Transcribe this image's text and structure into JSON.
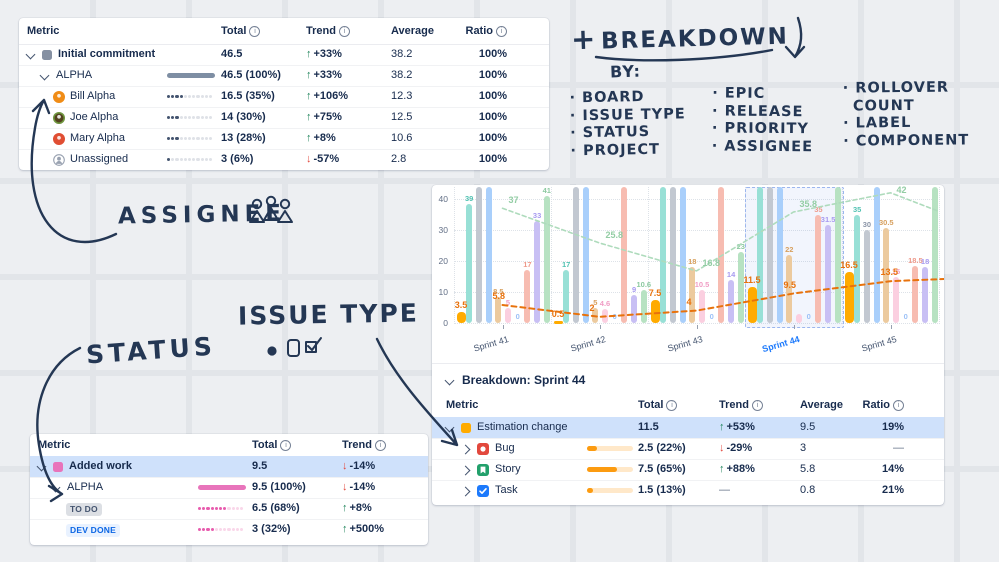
{
  "annotations": {
    "plus": "+",
    "title": "BREAKDOWN",
    "by": "BY:",
    "lists": [
      [
        "BOARD",
        "ISSUE TYPE",
        "STATUS",
        "PROJECT"
      ],
      [
        "EPIC",
        "RELEASE",
        "PRIORITY",
        "ASSIGNEE"
      ],
      [
        "ROLLOVER COUNT",
        "LABEL",
        "COMPONENT"
      ]
    ],
    "assignee": "ASSIGNEE",
    "status": "STATUS",
    "issue_type": "ISSUE TYPE"
  },
  "colors": {
    "accent_blue": "#1d7afc",
    "up_green": "#1f845a",
    "down_red": "#e2483d",
    "highlight_row": "#cfe1fb",
    "orange": "#ffab00",
    "ink": "#243754"
  },
  "commitment_table": {
    "columns": [
      "Metric",
      "Total",
      "Trend",
      "Average",
      "Ratio"
    ],
    "info_columns": [
      "Total",
      "Trend",
      "Ratio"
    ],
    "rows": [
      {
        "label": "Initial commitment",
        "level": 0,
        "expanded": true,
        "icon": "square",
        "icon_color": "#8590a2",
        "bold": true,
        "total": "46.5",
        "trend": "+33%",
        "trend_dir": "up",
        "average": "38.2",
        "ratio": "100%"
      },
      {
        "label": "ALPHA",
        "level": 1,
        "expanded": true,
        "bar": "solid",
        "bar_color": "#7e8ea3",
        "bar_pct": 100,
        "total": "46.5 (100%)",
        "trend": "+33%",
        "trend_dir": "up",
        "average": "38.2",
        "ratio": "100%"
      },
      {
        "label": "Bill Alpha",
        "level": 2,
        "icon": "avatar",
        "icon_color": "#f08c16",
        "bar": "dots",
        "bar_pct": 35,
        "total": "16.5 (35%)",
        "trend": "+106%",
        "trend_dir": "up",
        "average": "12.3",
        "ratio": "100%"
      },
      {
        "label": "Joe Alpha",
        "level": 2,
        "icon": "avatar",
        "icon_color": "#53421f",
        "icon_ring": "#6f9a3e",
        "bar": "dots",
        "bar_pct": 30,
        "total": "14 (30%)",
        "trend": "+75%",
        "trend_dir": "up",
        "average": "12.5",
        "ratio": "100%"
      },
      {
        "label": "Mary Alpha",
        "level": 2,
        "icon": "avatar",
        "icon_color": "#e04e33",
        "bar": "dots",
        "bar_pct": 28,
        "total": "13 (28%)",
        "trend": "+8%",
        "trend_dir": "up",
        "average": "10.6",
        "ratio": "100%"
      },
      {
        "label": "Unassigned",
        "level": 2,
        "icon": "person",
        "bar": "dots",
        "bar_pct": 6,
        "total": "3 (6%)",
        "trend": "-57%",
        "trend_dir": "down",
        "average": "2.8",
        "ratio": "100%"
      }
    ]
  },
  "added_work_table": {
    "columns": [
      "Metric",
      "Total",
      "Trend"
    ],
    "info_columns": [
      "Total",
      "Trend"
    ],
    "rows": [
      {
        "label": "Added work",
        "level": 0,
        "expanded": true,
        "icon": "square",
        "icon_color": "#e874bb",
        "bold": true,
        "highlight": true,
        "total": "9.5",
        "trend": "-14%",
        "trend_dir": "down"
      },
      {
        "label": "ALPHA",
        "level": 1,
        "expanded": true,
        "bar": "solid",
        "bar_color": "#e874bb",
        "bar_pct": 100,
        "total": "9.5 (100%)",
        "trend": "-14%",
        "trend_dir": "down"
      },
      {
        "label": "TO DO",
        "level": 2,
        "badge": "gray",
        "bar": "dots",
        "bar_pct": 68,
        "total": "6.5 (68%)",
        "trend": "+8%",
        "trend_dir": "up"
      },
      {
        "label": "DEV DONE",
        "level": 2,
        "badge": "blue",
        "bar": "dots",
        "bar_pct": 32,
        "total": "3 (32%)",
        "trend": "+500%",
        "trend_dir": "up"
      }
    ]
  },
  "breakdown_table": {
    "section_title": "Breakdown: Sprint 44",
    "columns": [
      "Metric",
      "Total",
      "Trend",
      "Average",
      "Ratio"
    ],
    "info_columns": [
      "Total",
      "Trend",
      "Ratio"
    ],
    "rows": [
      {
        "label": "Estimation change",
        "level": 0,
        "expanded": true,
        "icon": "square",
        "icon_color": "#ffab00",
        "highlight": true,
        "bold": false,
        "total": "11.5",
        "trend": "+53%",
        "trend_dir": "up",
        "average": "9.5",
        "ratio": "19%"
      },
      {
        "label": "Bug",
        "level": 1,
        "expanded": false,
        "icon": "bug",
        "bar": "track",
        "bar_pct": 22,
        "total": "2.5 (22%)",
        "trend": "-29%",
        "trend_dir": "down",
        "average": "3",
        "ratio": "—"
      },
      {
        "label": "Story",
        "level": 1,
        "expanded": false,
        "icon": "story",
        "bar": "track",
        "bar_pct": 65,
        "total": "7.5 (65%)",
        "trend": "+88%",
        "trend_dir": "up",
        "average": "5.8",
        "ratio": "14%"
      },
      {
        "label": "Task",
        "level": 1,
        "expanded": false,
        "icon": "task",
        "bar": "track",
        "bar_pct": 13,
        "total": "1.5 (13%)",
        "trend": "—",
        "trend_dir": "none",
        "average": "0.8",
        "ratio": "21%"
      }
    ]
  },
  "chart_data": {
    "type": "bar",
    "categories": [
      "Sprint 41",
      "Sprint 42",
      "Sprint 43",
      "Sprint 44",
      "Sprint 45"
    ],
    "selected_category": "Sprint 44",
    "yticks": [
      0,
      10,
      20,
      30,
      40
    ],
    "ylim": [
      0,
      44
    ],
    "grid": true,
    "highlight_bars": {
      "name": "Estimation change total",
      "color": "#ffab00",
      "label_color": "#e8720c",
      "values": [
        3.5,
        0.5,
        7.5,
        11.5,
        16.5
      ],
      "labels": [
        "3.5",
        "0.5",
        "7.5",
        "11.5",
        "16.5"
      ]
    },
    "highlight_line": {
      "name": "Estimation change average",
      "color": "#e8720c",
      "dash": true,
      "values": [
        5.8,
        2,
        4,
        9.5,
        13.5
      ],
      "labels": [
        "5.8",
        "2",
        "4",
        "9.5",
        "13.5"
      ]
    },
    "secondary_line": {
      "color": "#aedbbc",
      "label_color": "#93cda4",
      "dash": true,
      "values": [
        37,
        25.8,
        16.8,
        35.8,
        42
      ],
      "labels": [
        "37",
        "25.8",
        "16.8",
        "35.8",
        "42"
      ]
    },
    "background_series": [
      {
        "color": "#98e0d6",
        "label_color": "#52c2b2",
        "values": [
          38.5,
          17,
          44,
          44,
          35
        ],
        "labels": [
          "39",
          "17",
          "",
          "",
          "35"
        ]
      },
      {
        "color": "#c2c8d1",
        "label_color": "#8b95a7",
        "values": [
          44,
          44,
          44,
          44,
          30
        ],
        "labels": [
          "",
          "",
          "",
          "",
          "30"
        ]
      },
      {
        "color": "#a9cffb",
        "label_color": "#7fb3f5",
        "values": [
          44,
          44,
          44,
          44,
          44
        ],
        "labels": [
          "",
          "",
          "",
          "",
          ""
        ]
      },
      {
        "color": "#ecca9e",
        "label_color": "#d7a05e",
        "values": [
          8.5,
          5,
          18,
          22,
          30.5
        ],
        "labels": [
          "8.5",
          "5",
          "18",
          "22",
          "30.5"
        ]
      },
      {
        "color": "#fbcfe0",
        "label_color": "#f09cc4",
        "values": [
          5,
          4.6,
          10.5,
          3,
          15
        ],
        "labels": [
          "5",
          "4.6",
          "10.5",
          "",
          "15"
        ]
      },
      {
        "color": "#cfe3fd",
        "label_color": "#9cc1f7",
        "values": [
          0,
          0,
          0,
          0,
          0
        ],
        "labels": [
          "0",
          "0",
          "0",
          "0",
          "0"
        ]
      },
      {
        "color": "#f7bcb1",
        "label_color": "#ee9a8b",
        "values": [
          17,
          44,
          44,
          35,
          18.5
        ],
        "labels": [
          "17",
          "",
          "",
          "35",
          "18.5"
        ]
      },
      {
        "color": "#c8bff4",
        "label_color": "#a79af0",
        "values": [
          33,
          9,
          14,
          31.5,
          18
        ],
        "labels": [
          "33",
          "9",
          "14",
          "31.5",
          "18"
        ]
      },
      {
        "color": "#b7e2c2",
        "label_color": "#8cc9a0",
        "values": [
          41,
          10.6,
          23,
          44,
          44
        ],
        "labels": [
          "41",
          "10.6",
          "23",
          "",
          ""
        ]
      }
    ]
  }
}
